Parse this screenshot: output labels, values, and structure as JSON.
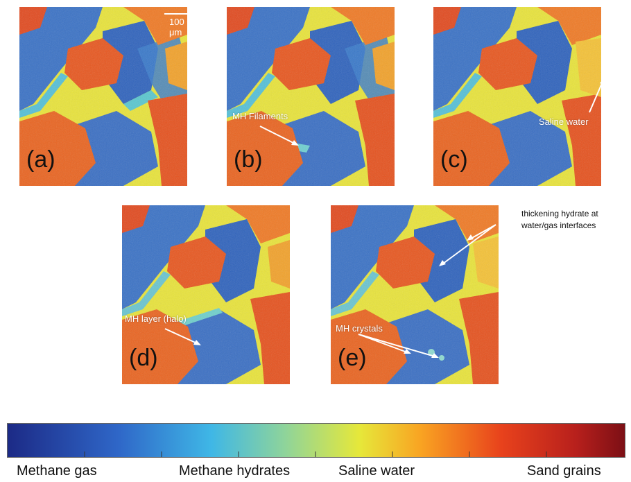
{
  "figure": {
    "panels": [
      {
        "id": "a",
        "label": "(a)",
        "scale_bar": "100 μm",
        "annotations": []
      },
      {
        "id": "b",
        "label": "(b)",
        "annotations": [
          {
            "text": "MH Filaments"
          }
        ]
      },
      {
        "id": "c",
        "label": "(c)",
        "annotations": [
          {
            "text": "Saline water"
          }
        ]
      },
      {
        "id": "d",
        "label": "(d)",
        "annotations": [
          {
            "text": "MH layer (halo)"
          }
        ]
      },
      {
        "id": "e",
        "label": "(e)",
        "annotations": [
          {
            "text": "MH crystals"
          }
        ]
      }
    ],
    "side_note": {
      "line1": "thickening hydrate at",
      "line2": "water/gas interfaces"
    },
    "colorbar": {
      "stops": [
        "#1c2a86",
        "#2f67c8",
        "#3fb7e6",
        "#8fd49a",
        "#e6e83a",
        "#f9a322",
        "#e8421c",
        "#b8201c",
        "#7c0f15"
      ],
      "labels": [
        "Methane gas",
        "Methane hydrates",
        "Saline water",
        "Sand grains"
      ]
    }
  }
}
